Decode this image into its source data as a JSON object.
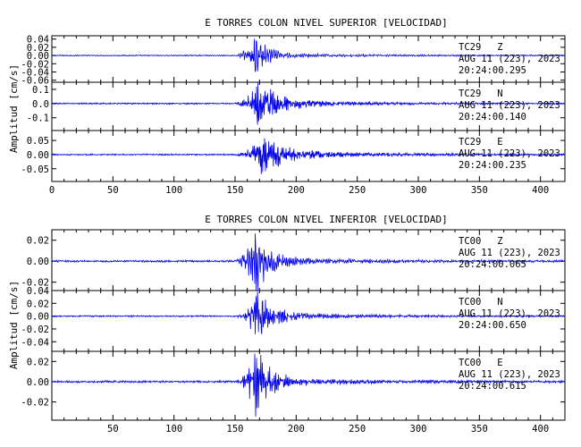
{
  "chart_data": [
    {
      "type": "line",
      "title": "E TORRES COLON NIVEL SUPERIOR [VELOCIDAD]",
      "ylabel": "Amplitud [cm/s]",
      "xlim": [
        0,
        420
      ],
      "xticks": [
        "0",
        "50",
        "100",
        "150",
        "200",
        "250",
        "300",
        "350",
        "400"
      ],
      "line_color": "#0000ee",
      "panels": [
        {
          "station": "TC29",
          "component": "Z",
          "date": "AUG 11 (223), 2023",
          "time": "20:24:00.295",
          "ylim": [
            -0.065,
            0.048
          ],
          "yticks": [
            0.04,
            0.02,
            0.0,
            -0.02,
            -0.04,
            -0.06
          ],
          "ytick_labels": [
            "0.04",
            "0.02",
            "0.00",
            "-0.02",
            "-0.04",
            "-0.06"
          ],
          "signal": {
            "onset": 150,
            "peak_time": 166,
            "peak_amp": 0.045,
            "decay": 9,
            "noise": 0.0012,
            "coda": 0.004,
            "freq": 3.2
          }
        },
        {
          "station": "TC29",
          "component": "N",
          "date": "AUG 11 (223), 2023",
          "time": "20:24:00.140",
          "ylim": [
            -0.19,
            0.15
          ],
          "yticks": [
            0.1,
            0.0,
            -0.1
          ],
          "ytick_labels": [
            "0.1",
            "0.0",
            "-0.1"
          ],
          "signal": {
            "onset": 150,
            "peak_time": 168,
            "peak_amp": 0.14,
            "decay": 14,
            "noise": 0.004,
            "coda": 0.02,
            "freq": 2.6
          }
        },
        {
          "station": "TC29",
          "component": "E",
          "date": "AUG 11 (223), 2023",
          "time": "20:24:00.235",
          "ylim": [
            -0.095,
            0.085
          ],
          "yticks": [
            0.05,
            0.0,
            -0.05
          ],
          "ytick_labels": [
            "0.05",
            "0.00",
            "-0.05"
          ],
          "signal": {
            "onset": 150,
            "peak_time": 170,
            "peak_amp": 0.06,
            "decay": 16,
            "noise": 0.002,
            "coda": 0.012,
            "freq": 2.5
          }
        }
      ]
    },
    {
      "type": "line",
      "title": "E TORRES COLON NIVEL INFERIOR [VELOCIDAD]",
      "ylabel": "Amplitud [cm/s]",
      "xlim": [
        0,
        420
      ],
      "xticks": [
        "",
        "50",
        "100",
        "150",
        "200",
        "250",
        "300",
        "350",
        "400"
      ],
      "line_color": "#0000ee",
      "panels": [
        {
          "station": "TC00",
          "component": "Z",
          "date": "AUG 11 (223), 2023",
          "time": "20:24:00.065",
          "ylim": [
            -0.028,
            0.03
          ],
          "yticks": [
            0.02,
            0.0,
            -0.02
          ],
          "ytick_labels": [
            "0.02",
            "0.00",
            "-0.02"
          ],
          "signal": {
            "onset": 150,
            "peak_time": 166,
            "peak_amp": 0.028,
            "decay": 10,
            "noise": 0.0008,
            "coda": 0.0025,
            "freq": 3.0
          }
        },
        {
          "station": "TC00",
          "component": "N",
          "date": "AUG 11 (223), 2023",
          "time": "20:24:00.650",
          "ylim": [
            -0.055,
            0.04
          ],
          "yticks": [
            0.04,
            0.02,
            0.0,
            -0.02,
            -0.04
          ],
          "ytick_labels": [
            "0.04",
            "0.02",
            "0.00",
            "-0.02",
            "-0.04"
          ],
          "signal": {
            "onset": 150,
            "peak_time": 167,
            "peak_amp": 0.035,
            "decay": 11,
            "noise": 0.001,
            "coda": 0.004,
            "freq": 2.8
          }
        },
        {
          "station": "TC00",
          "component": "E",
          "date": "AUG 11 (223), 2023",
          "time": "20:24:00.615",
          "ylim": [
            -0.038,
            0.03
          ],
          "yticks": [
            0.02,
            0.0,
            -0.02
          ],
          "ytick_labels": [
            "0.02",
            "0.00",
            "-0.02"
          ],
          "signal": {
            "onset": 150,
            "peak_time": 166,
            "peak_amp": 0.028,
            "decay": 11,
            "noise": 0.0008,
            "coda": 0.003,
            "freq": 2.7
          }
        }
      ]
    }
  ]
}
